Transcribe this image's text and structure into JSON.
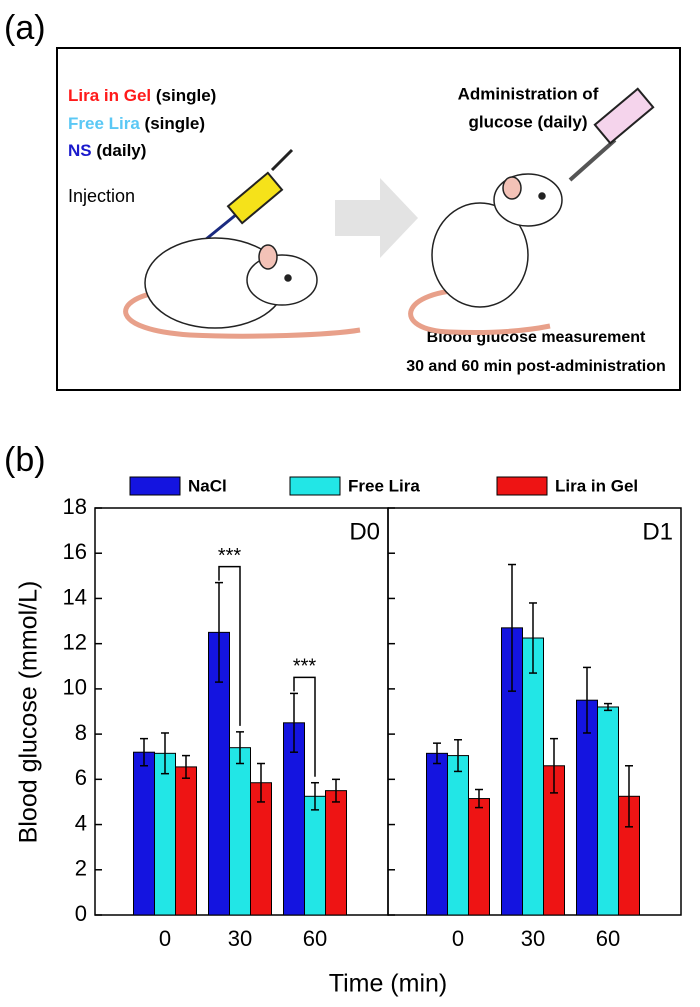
{
  "panel_a": {
    "label": "(a)",
    "lira_gel": "Lira in Gel",
    "lira_gel_note": "(single)",
    "free_lira": "Free Lira",
    "free_lira_note": "(single)",
    "ns": "NS",
    "ns_note": "(daily)",
    "injection": "Injection",
    "admin_line1": "Administration of",
    "admin_line2": "glucose (daily)",
    "measure_line1": "Blood glucose measurement",
    "measure_line2": "30 and 60 min post-administration"
  },
  "panel_b": {
    "label": "(b)",
    "x_label": "Time (min)",
    "y_label": "Blood glucose (mmol/L)"
  },
  "chart_data": [
    {
      "type": "bar",
      "title": "D0",
      "categories": [
        "0",
        "30",
        "60"
      ],
      "series": [
        {
          "name": "NaCl",
          "color": "#1414e0",
          "values": [
            7.2,
            12.5,
            8.5
          ],
          "errors": [
            0.6,
            2.2,
            1.3
          ]
        },
        {
          "name": "Free Lira",
          "color": "#22e6e6",
          "values": [
            7.15,
            7.4,
            5.25
          ],
          "errors": [
            0.9,
            0.7,
            0.6
          ]
        },
        {
          "name": "Lira in Gel",
          "color": "#ee1414",
          "values": [
            6.55,
            5.85,
            5.5
          ],
          "errors": [
            0.5,
            0.85,
            0.5
          ]
        }
      ],
      "annotations": [
        {
          "text": "***",
          "category": "30"
        },
        {
          "text": "***",
          "category": "60"
        }
      ],
      "ylim": [
        0,
        18
      ],
      "yticks": [
        0,
        2,
        4,
        6,
        8,
        10,
        12,
        14,
        16,
        18
      ]
    },
    {
      "type": "bar",
      "title": "D1",
      "categories": [
        "0",
        "30",
        "60"
      ],
      "series": [
        {
          "color": "#1414e0",
          "values": [
            7.15,
            12.7,
            9.5
          ],
          "errors": [
            0.45,
            2.8,
            1.45
          ]
        },
        {
          "color": "#22e6e6",
          "values": [
            7.05,
            12.25,
            9.2
          ],
          "errors": [
            0.7,
            1.55,
            0.15
          ]
        },
        {
          "color": "#ee1414",
          "values": [
            5.15,
            6.6,
            5.25
          ],
          "errors": [
            0.4,
            1.2,
            1.35
          ]
        }
      ],
      "ylim": [
        0,
        18
      ],
      "yticks": [
        0,
        2,
        4,
        6,
        8,
        10,
        12,
        14,
        16,
        18
      ]
    }
  ]
}
